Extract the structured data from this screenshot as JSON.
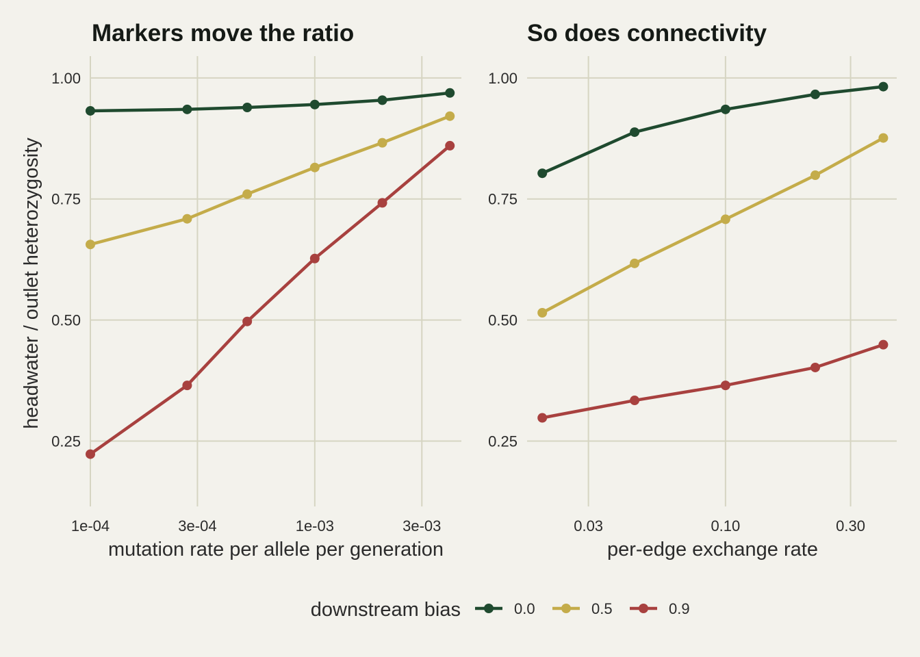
{
  "chart_data": [
    {
      "type": "line",
      "title": "Markers move the ratio",
      "xlabel": "mutation rate per allele per generation",
      "ylabel": "headwater / outlet heterozygosity",
      "x_scale": "log",
      "xlim": [
        0.0001,
        0.0045
      ],
      "ylim": [
        0.115,
        1.045
      ],
      "x_ticks": [
        {
          "value": 0.0001,
          "label": "1e-04"
        },
        {
          "value": 0.0003,
          "label": "3e-04"
        },
        {
          "value": 0.001,
          "label": "1e-03"
        },
        {
          "value": 0.003,
          "label": "3e-03"
        }
      ],
      "y_ticks": [
        {
          "value": 0.25,
          "label": "0.25"
        },
        {
          "value": 0.5,
          "label": "0.50"
        },
        {
          "value": 0.75,
          "label": "0.75"
        },
        {
          "value": 1.0,
          "label": "1.00"
        }
      ],
      "x": [
        0.0001,
        0.00027,
        0.0005,
        0.001,
        0.002,
        0.004
      ],
      "series": [
        {
          "name": "0.0",
          "color": "#1f4a2f",
          "values": [
            0.932,
            0.935,
            0.939,
            0.945,
            0.954,
            0.969
          ]
        },
        {
          "name": "0.5",
          "color": "#c4ac4a",
          "values": [
            0.656,
            0.709,
            0.76,
            0.815,
            0.866,
            0.921
          ]
        },
        {
          "name": "0.9",
          "color": "#a8413f",
          "values": [
            0.223,
            0.365,
            0.497,
            0.627,
            0.742,
            0.86
          ]
        }
      ],
      "grid": true
    },
    {
      "type": "line",
      "title": "So does connectivity",
      "xlabel": "per-edge exchange rate",
      "ylabel": "",
      "x_scale": "log",
      "xlim": [
        0.0175,
        0.45
      ],
      "ylim": [
        0.115,
        1.045
      ],
      "x_ticks": [
        {
          "value": 0.03,
          "label": "0.03"
        },
        {
          "value": 0.1,
          "label": "0.10"
        },
        {
          "value": 0.3,
          "label": "0.30"
        }
      ],
      "y_ticks": [
        {
          "value": 0.25,
          "label": "0.25"
        },
        {
          "value": 0.5,
          "label": "0.50"
        },
        {
          "value": 0.75,
          "label": "0.75"
        },
        {
          "value": 1.0,
          "label": "1.00"
        }
      ],
      "x": [
        0.02,
        0.045,
        0.1,
        0.22,
        0.4
      ],
      "series": [
        {
          "name": "0.0",
          "color": "#1f4a2f",
          "values": [
            0.803,
            0.888,
            0.935,
            0.966,
            0.982
          ]
        },
        {
          "name": "0.5",
          "color": "#c4ac4a",
          "values": [
            0.515,
            0.617,
            0.708,
            0.799,
            0.876
          ]
        },
        {
          "name": "0.9",
          "color": "#a8413f",
          "values": [
            0.298,
            0.334,
            0.365,
            0.402,
            0.449
          ]
        }
      ],
      "grid": true
    }
  ],
  "legend": {
    "title": "downstream bias",
    "position": "bottom",
    "items": [
      {
        "label": "0.0",
        "color": "#1f4a2f"
      },
      {
        "label": "0.5",
        "color": "#c4ac4a"
      },
      {
        "label": "0.9",
        "color": "#a8413f"
      }
    ]
  }
}
